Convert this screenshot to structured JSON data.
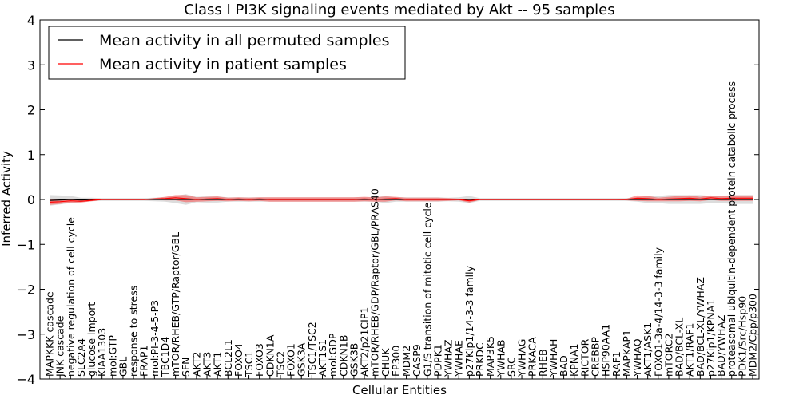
{
  "chart_data": {
    "type": "line",
    "title": "Class I PI3K signaling events mediated by Akt -- 95 samples",
    "xlabel": "Cellular Entities",
    "ylabel": "Inferred Activity",
    "ylim": [
      -4,
      4
    ],
    "yticks": [
      -4,
      -3,
      -2,
      -1,
      0,
      1,
      2,
      3,
      4
    ],
    "ytick_labels": [
      "−4",
      "−3",
      "−2",
      "−1",
      "0",
      "1",
      "2",
      "3",
      "4"
    ],
    "legend_position": "top-left",
    "categories": [
      "MAPKKK cascade",
      "JNK cascade",
      "negative regulation of cell cycle",
      "SLC2A4",
      "glucose import",
      "KIAA1303",
      "mol:GTP",
      "GBL",
      "response to stress",
      "FRAP1",
      "mol:PI-3-4-5-P3",
      "TBC1D4",
      "mTOR/RHEB/GTP/Raptor/GBL",
      "SFN",
      "AKT2",
      "AKT3",
      "AKT1",
      "BCL2L1",
      "FOXO4",
      "TSC1",
      "FOXO3",
      "CDKN1A",
      "TSC2",
      "FOXO1",
      "GSK3A",
      "TSC1/TSC2",
      "AKT1S1",
      "mol:GDP",
      "CDKN1B",
      "GSK3B",
      "AKT2/p21CIP1",
      "mTOR/RHEB/GDP/Raptor/GBL/PRAS40",
      "CHUK",
      "EP300",
      "MDM2",
      "CASP9",
      "G1/S transition of mitotic cell cycle",
      "PDPK1",
      "YWHAZ",
      "YWHAE",
      "p27Kip1/14-3-3 family",
      "PRKDC",
      "MAP3K5",
      "YWHAB",
      "SRC",
      "YWHAG",
      "PRKACA",
      "RHEB",
      "YWHAH",
      "BAD",
      "KPNA1",
      "RICTOR",
      "CREBBP",
      "HSP90AA1",
      "RAF1",
      "MAPKAP1",
      "YWHAQ",
      "AKT1/ASK1",
      "FOXO1-3a-4/14-3-3 family",
      "mTORC2",
      "BAD/BCL-XL",
      "AKT1/RAF1",
      "BAD/BCL-XL/YWHAZ",
      "p27Kip1/KPNA1",
      "BAD/YWHAZ",
      "proteasomal ubiquitin-dependent protein catabolic process",
      "PDK1/Src/Hsp90",
      "MDM2/Cbp/p300"
    ],
    "series": [
      {
        "name": "Mean activity in all permuted samples",
        "color": "#000000",
        "values": [
          -0.02,
          -0.01,
          0.0,
          -0.01,
          0.0,
          0.0,
          0.0,
          0.0,
          0.0,
          0.0,
          0.0,
          0.0,
          0.0,
          0.0,
          0.0,
          0.0,
          0.0,
          0.0,
          0.0,
          0.0,
          0.0,
          0.0,
          0.0,
          0.0,
          0.0,
          0.0,
          0.0,
          0.0,
          0.0,
          0.0,
          0.0,
          0.0,
          0.0,
          0.0,
          0.0,
          0.0,
          0.0,
          0.0,
          0.0,
          0.0,
          0.0,
          0.0,
          0.0,
          0.0,
          0.0,
          0.0,
          0.0,
          0.0,
          0.0,
          0.0,
          0.0,
          0.0,
          0.0,
          0.0,
          0.0,
          0.0,
          0.0,
          0.0,
          0.0,
          0.0,
          0.0,
          0.0,
          0.0,
          0.0,
          0.0,
          0.0,
          0.0,
          0.0
        ],
        "band": [
          0.12,
          0.1,
          0.08,
          0.05,
          0.04,
          0.03,
          0.03,
          0.03,
          0.03,
          0.03,
          0.04,
          0.05,
          0.08,
          0.12,
          0.06,
          0.07,
          0.07,
          0.05,
          0.05,
          0.05,
          0.05,
          0.05,
          0.05,
          0.05,
          0.05,
          0.05,
          0.05,
          0.05,
          0.05,
          0.05,
          0.05,
          0.05,
          0.08,
          0.05,
          0.05,
          0.05,
          0.05,
          0.05,
          0.04,
          0.05,
          0.08,
          0.03,
          0.03,
          0.03,
          0.03,
          0.03,
          0.03,
          0.03,
          0.03,
          0.03,
          0.03,
          0.03,
          0.03,
          0.03,
          0.03,
          0.03,
          0.05,
          0.08,
          0.08,
          0.1,
          0.1,
          0.1,
          0.1,
          0.08,
          0.08,
          0.1,
          0.1,
          0.1
        ]
      },
      {
        "name": "Mean activity in patient samples",
        "color": "#ff0000",
        "values": [
          -0.06,
          -0.05,
          -0.03,
          -0.04,
          -0.02,
          0.0,
          0.0,
          0.0,
          0.0,
          0.0,
          0.01,
          0.02,
          0.04,
          0.02,
          0.0,
          0.01,
          0.02,
          0.0,
          0.01,
          0.0,
          0.01,
          0.0,
          0.0,
          0.0,
          0.0,
          0.0,
          0.0,
          0.0,
          0.0,
          0.0,
          0.01,
          0.0,
          0.01,
          0.02,
          0.0,
          0.0,
          0.0,
          0.0,
          0.0,
          0.0,
          -0.03,
          0.0,
          0.0,
          0.0,
          0.0,
          0.0,
          0.0,
          0.0,
          0.0,
          0.0,
          0.0,
          0.0,
          0.0,
          0.0,
          0.0,
          0.0,
          0.03,
          0.02,
          0.0,
          0.01,
          0.02,
          0.03,
          0.01,
          0.04,
          0.02,
          0.03,
          0.03,
          0.03
        ],
        "band": [
          0.06,
          0.05,
          0.04,
          0.03,
          0.02,
          0.01,
          0.01,
          0.01,
          0.01,
          0.01,
          0.02,
          0.04,
          0.06,
          0.08,
          0.05,
          0.05,
          0.05,
          0.04,
          0.04,
          0.04,
          0.04,
          0.05,
          0.05,
          0.05,
          0.05,
          0.05,
          0.05,
          0.05,
          0.05,
          0.05,
          0.05,
          0.05,
          0.06,
          0.04,
          0.04,
          0.04,
          0.04,
          0.04,
          0.03,
          0.02,
          0.04,
          0.01,
          0.01,
          0.01,
          0.01,
          0.01,
          0.01,
          0.01,
          0.01,
          0.01,
          0.01,
          0.01,
          0.01,
          0.01,
          0.01,
          0.02,
          0.06,
          0.06,
          0.04,
          0.05,
          0.06,
          0.06,
          0.05,
          0.05,
          0.05,
          0.06,
          0.06,
          0.06
        ]
      }
    ]
  }
}
